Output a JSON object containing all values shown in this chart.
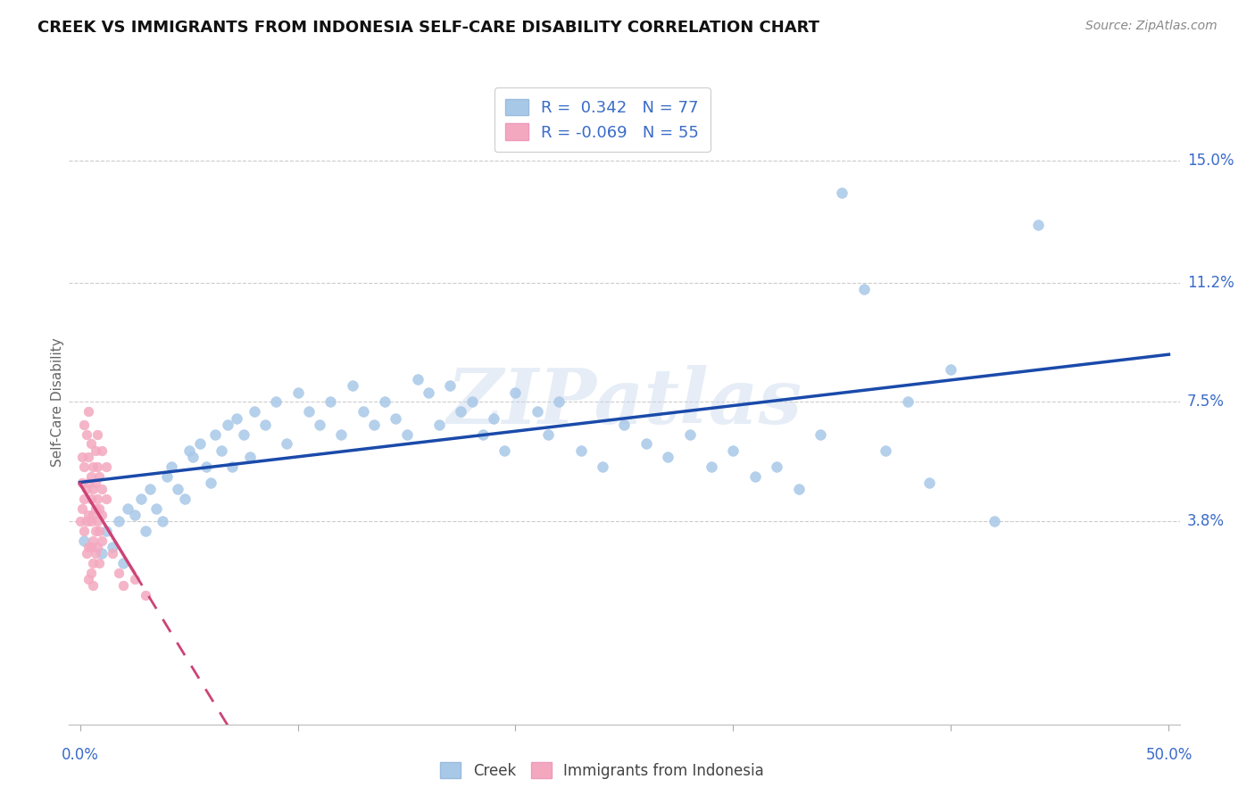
{
  "title": "CREEK VS IMMIGRANTS FROM INDONESIA SELF-CARE DISABILITY CORRELATION CHART",
  "source": "Source: ZipAtlas.com",
  "ylabel": "Self-Care Disability",
  "creek_color": "#a8c8e8",
  "creek_edge_color": "#a8c8e8",
  "indo_color": "#f4a8c0",
  "indo_edge_color": "#f4a8c0",
  "creek_line_color": "#1a4aaa",
  "indo_line_color": "#cc4477",
  "ytick_values": [
    0.15,
    0.112,
    0.075,
    0.038
  ],
  "ytick_labels": [
    "15.0%",
    "11.2%",
    "7.5%",
    "3.8%"
  ],
  "xlim": [
    -0.005,
    0.505
  ],
  "ylim": [
    -0.025,
    0.175
  ],
  "watermark_text": "ZIPatlas",
  "legend_line1": "R =  0.342   N = 77",
  "legend_line2": "R = -0.069   N = 55",
  "bottom_legend_labels": [
    "Creek",
    "Immigrants from Indonesia"
  ],
  "creek_x": [
    0.002,
    0.01,
    0.012,
    0.015,
    0.018,
    0.02,
    0.022,
    0.025,
    0.028,
    0.03,
    0.032,
    0.035,
    0.038,
    0.04,
    0.042,
    0.045,
    0.048,
    0.05,
    0.052,
    0.055,
    0.058,
    0.06,
    0.062,
    0.065,
    0.068,
    0.07,
    0.072,
    0.075,
    0.078,
    0.08,
    0.085,
    0.09,
    0.095,
    0.1,
    0.105,
    0.11,
    0.115,
    0.12,
    0.125,
    0.13,
    0.135,
    0.14,
    0.145,
    0.15,
    0.155,
    0.16,
    0.165,
    0.17,
    0.175,
    0.18,
    0.185,
    0.19,
    0.195,
    0.2,
    0.21,
    0.215,
    0.22,
    0.23,
    0.24,
    0.25,
    0.26,
    0.27,
    0.28,
    0.29,
    0.3,
    0.31,
    0.32,
    0.33,
    0.34,
    0.35,
    0.36,
    0.37,
    0.38,
    0.39,
    0.4,
    0.42,
    0.44
  ],
  "creek_y": [
    0.032,
    0.028,
    0.035,
    0.03,
    0.038,
    0.025,
    0.042,
    0.04,
    0.045,
    0.035,
    0.048,
    0.042,
    0.038,
    0.052,
    0.055,
    0.048,
    0.045,
    0.06,
    0.058,
    0.062,
    0.055,
    0.05,
    0.065,
    0.06,
    0.068,
    0.055,
    0.07,
    0.065,
    0.058,
    0.072,
    0.068,
    0.075,
    0.062,
    0.078,
    0.072,
    0.068,
    0.075,
    0.065,
    0.08,
    0.072,
    0.068,
    0.075,
    0.07,
    0.065,
    0.082,
    0.078,
    0.068,
    0.08,
    0.072,
    0.075,
    0.065,
    0.07,
    0.06,
    0.078,
    0.072,
    0.065,
    0.075,
    0.06,
    0.055,
    0.068,
    0.062,
    0.058,
    0.065,
    0.055,
    0.06,
    0.052,
    0.055,
    0.048,
    0.065,
    0.14,
    0.11,
    0.06,
    0.075,
    0.05,
    0.085,
    0.038,
    0.13
  ],
  "indo_x": [
    0.0,
    0.001,
    0.001,
    0.001,
    0.002,
    0.002,
    0.002,
    0.002,
    0.003,
    0.003,
    0.003,
    0.003,
    0.004,
    0.004,
    0.004,
    0.004,
    0.004,
    0.004,
    0.005,
    0.005,
    0.005,
    0.005,
    0.005,
    0.005,
    0.006,
    0.006,
    0.006,
    0.006,
    0.006,
    0.006,
    0.007,
    0.007,
    0.007,
    0.007,
    0.007,
    0.008,
    0.008,
    0.008,
    0.008,
    0.008,
    0.009,
    0.009,
    0.009,
    0.009,
    0.01,
    0.01,
    0.01,
    0.01,
    0.012,
    0.012,
    0.015,
    0.018,
    0.02,
    0.025,
    0.03
  ],
  "indo_y": [
    0.038,
    0.058,
    0.05,
    0.042,
    0.068,
    0.055,
    0.045,
    0.035,
    0.065,
    0.048,
    0.038,
    0.028,
    0.072,
    0.058,
    0.05,
    0.04,
    0.03,
    0.02,
    0.062,
    0.052,
    0.045,
    0.038,
    0.03,
    0.022,
    0.055,
    0.048,
    0.04,
    0.032,
    0.025,
    0.018,
    0.06,
    0.05,
    0.042,
    0.035,
    0.028,
    0.065,
    0.055,
    0.045,
    0.038,
    0.03,
    0.052,
    0.042,
    0.035,
    0.025,
    0.06,
    0.048,
    0.04,
    0.032,
    0.055,
    0.045,
    0.028,
    0.022,
    0.018,
    0.02,
    0.015
  ]
}
